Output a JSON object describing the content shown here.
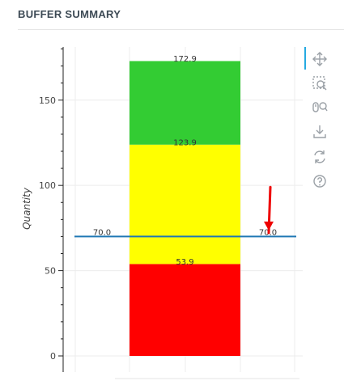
{
  "header": {
    "title": "BUFFER SUMMARY"
  },
  "toolbar": {
    "tools": [
      {
        "name": "pan-icon"
      },
      {
        "name": "box-zoom-icon"
      },
      {
        "name": "wheel-zoom-icon"
      },
      {
        "name": "save-icon"
      },
      {
        "name": "reset-icon"
      },
      {
        "name": "help-icon"
      }
    ]
  },
  "colors": {
    "green": "#33cc33",
    "yellow": "#ffff00",
    "red": "#ff0000",
    "line": "#1f77b4",
    "arrow": "#ee0000",
    "toolbar_accent": "#26aae1"
  },
  "chart_data": {
    "type": "bar",
    "stacked": true,
    "ylabel": "Quantity",
    "ylim": [
      0,
      180
    ],
    "yticks": [
      0,
      50,
      100,
      150
    ],
    "ytick_labels": [
      "0",
      "50",
      "100",
      "150"
    ],
    "grid": true,
    "segments": [
      {
        "zone": "red",
        "bottom": 0,
        "top": 53.9,
        "label": "53.9",
        "color": "#ff0000"
      },
      {
        "zone": "yellow",
        "bottom": 53.9,
        "top": 123.9,
        "label": "123.9",
        "color": "#ffff00"
      },
      {
        "zone": "green",
        "bottom": 123.9,
        "top": 172.9,
        "label": "172.9",
        "color": "#33cc33"
      }
    ],
    "reference_line": {
      "value": 70.0,
      "label_left": "70.0",
      "label_right": "70.0",
      "color": "#1f77b4"
    },
    "arrow": {
      "from_value": 99,
      "to_value": 75,
      "color": "#ee0000"
    }
  }
}
